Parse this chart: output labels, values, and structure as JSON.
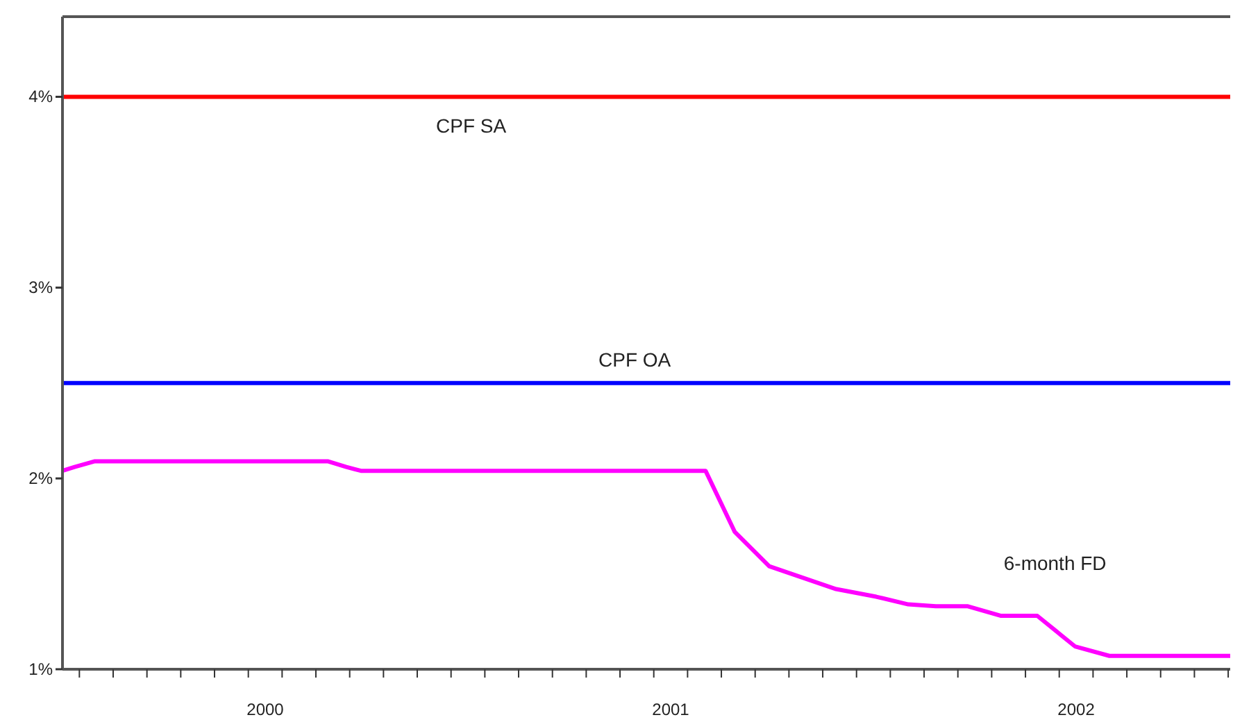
{
  "chart_data": {
    "type": "line",
    "legend": false,
    "grid": false,
    "line_style": "solid",
    "xlim": [
      2000,
      2002.88
    ],
    "xticks": [
      {
        "value": 2000.5,
        "label": "2000"
      },
      {
        "value": 2001.5,
        "label": "2001"
      },
      {
        "value": 2002.5,
        "label": "2002"
      }
    ],
    "ylim": [
      1,
      4.42
    ],
    "yticks": [
      {
        "value": 1,
        "label": "1%"
      },
      {
        "value": 2,
        "label": "2%"
      },
      {
        "value": 3,
        "label": "3%"
      },
      {
        "value": 4,
        "label": "4%"
      }
    ],
    "series": [
      {
        "name": "CPF SA",
        "color": "#ff0000",
        "x": [
          2000,
          2002.88
        ],
        "values": [
          4,
          4
        ]
      },
      {
        "name": "CPF OA",
        "color": "#0000ff",
        "x": [
          2000,
          2002.88
        ],
        "values": [
          2.5,
          2.5
        ]
      },
      {
        "name": "6-month FD",
        "color": "#ff00ff",
        "x": [
          2000,
          2000.03,
          2000.08,
          2000.654,
          2000.7,
          2000.736,
          2001.586,
          2001.658,
          2001.743,
          2001.908,
          2002.007,
          2002.086,
          2002.154,
          2002.233,
          2002.315,
          2002.404,
          2002.497,
          2002.582,
          2002.88
        ],
        "values": [
          2.04,
          2.06,
          2.09,
          2.09,
          2.06,
          2.04,
          2.04,
          1.72,
          1.54,
          1.42,
          1.38,
          1.34,
          1.33,
          1.33,
          1.28,
          1.28,
          1.12,
          1.07,
          1.07
        ]
      }
    ]
  }
}
